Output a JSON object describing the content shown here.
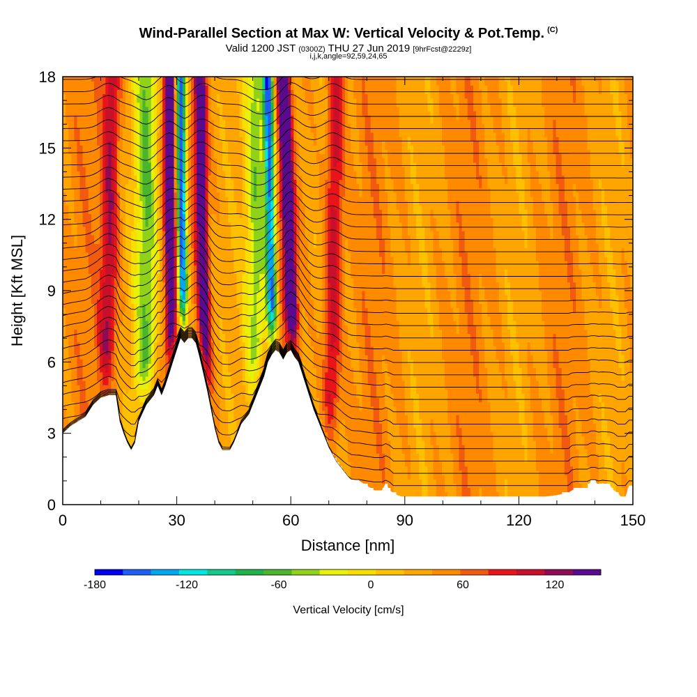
{
  "header": {
    "title": "Wind-Parallel Section at Max W: Vertical Velocity & Pot.Temp.",
    "copyright": "(C)",
    "valid_prefix": "Valid 1200 JST",
    "valid_utc": "(0300Z)",
    "valid_date": "THU 27 Jun 2019",
    "forecast": "[9hrFcst@2229z]",
    "indices": "i,j,k,angle=92,59,24,65"
  },
  "chart_data": {
    "type": "heatmap",
    "xlabel": "Distance [nm]",
    "ylabel": "Height [Kft MSL]",
    "xlim": [
      0,
      150
    ],
    "ylim": [
      0,
      18
    ],
    "x_ticks": [
      "0",
      "30",
      "60",
      "90",
      "120",
      "150"
    ],
    "y_ticks": [
      "0",
      "3",
      "6",
      "9",
      "12",
      "15",
      "18"
    ],
    "colorbar": {
      "label": "Vertical Velocity [cm/s]",
      "range": [
        -180,
        150
      ],
      "step": 15,
      "tick_labels": [
        "-180",
        "-120",
        "-60",
        "0",
        "60",
        "120"
      ],
      "colors": [
        "#0000ee",
        "#1d5ff5",
        "#00a6f0",
        "#00e6e0",
        "#12c98a",
        "#1fb24a",
        "#4bb52d",
        "#90d21a",
        "#e6f20a",
        "#f7e000",
        "#ffc000",
        "#ffa500",
        "#ff8a00",
        "#f25a10",
        "#e8141a",
        "#c8102a",
        "#900a55",
        "#5a0a8c"
      ]
    },
    "terrain": [
      [
        0,
        3
      ],
      [
        2,
        3.3
      ],
      [
        4,
        3.5
      ],
      [
        6,
        3.7
      ],
      [
        8,
        4.2
      ],
      [
        10,
        4.5
      ],
      [
        12,
        4.6
      ],
      [
        14,
        4.6
      ],
      [
        15,
        3.5
      ],
      [
        16,
        3
      ],
      [
        17,
        2.6
      ],
      [
        18,
        2.3
      ],
      [
        19,
        2.6
      ],
      [
        20,
        3.5
      ],
      [
        22,
        4.2
      ],
      [
        24,
        4.6
      ],
      [
        25,
        5
      ],
      [
        26,
        4.6
      ],
      [
        27,
        5
      ],
      [
        28,
        5.5
      ],
      [
        29,
        6
      ],
      [
        30,
        6.5
      ],
      [
        31,
        7
      ],
      [
        32,
        6.8
      ],
      [
        33,
        7
      ],
      [
        34,
        7
      ],
      [
        35,
        6.8
      ],
      [
        36,
        6.2
      ],
      [
        37,
        5.5
      ],
      [
        38,
        4.8
      ],
      [
        39,
        4
      ],
      [
        40,
        3.2
      ],
      [
        41,
        2.6
      ],
      [
        42,
        2.3
      ],
      [
        43,
        2.3
      ],
      [
        44,
        2.3
      ],
      [
        45,
        2.6
      ],
      [
        46,
        3
      ],
      [
        47,
        3.4
      ],
      [
        48,
        3.6
      ],
      [
        49,
        3.8
      ],
      [
        50,
        4.2
      ],
      [
        51,
        4.6
      ],
      [
        52,
        5
      ],
      [
        53,
        5.4
      ],
      [
        54,
        6
      ],
      [
        55,
        6.3
      ],
      [
        56,
        6.5
      ],
      [
        57,
        6.4
      ],
      [
        58,
        6.1
      ],
      [
        59,
        6.4
      ],
      [
        60,
        6.5
      ],
      [
        61,
        6.2
      ],
      [
        62,
        6
      ],
      [
        63,
        5.5
      ],
      [
        64,
        5
      ],
      [
        65,
        4.5
      ],
      [
        66,
        4
      ],
      [
        67,
        3.6
      ],
      [
        68,
        3.2
      ],
      [
        69,
        2.8
      ],
      [
        70,
        2.4
      ],
      [
        71,
        2.1
      ],
      [
        72,
        1.8
      ],
      [
        73,
        1.6
      ],
      [
        74,
        1.4
      ],
      [
        75,
        1.2
      ],
      [
        76,
        1
      ],
      [
        78,
        1
      ],
      [
        80,
        0.8
      ],
      [
        82,
        0.6
      ],
      [
        84,
        0.6
      ],
      [
        85,
        0.9
      ],
      [
        86,
        0.6
      ],
      [
        88,
        0.4
      ],
      [
        90,
        0.3
      ],
      [
        95,
        0.3
      ],
      [
        100,
        0.3
      ],
      [
        105,
        0.3
      ],
      [
        110,
        0.3
      ],
      [
        115,
        0.3
      ],
      [
        120,
        0.3
      ],
      [
        125,
        0.3
      ],
      [
        130,
        0.4
      ],
      [
        133,
        0.5
      ],
      [
        135,
        0.7
      ],
      [
        138,
        0.7
      ],
      [
        139,
        1
      ],
      [
        140,
        1
      ],
      [
        141,
        0.8
      ],
      [
        142,
        0.9
      ],
      [
        144,
        0.8
      ],
      [
        145,
        0.6
      ],
      [
        146,
        0.5
      ],
      [
        147,
        0.3
      ],
      [
        148,
        0.3
      ],
      [
        149,
        0.8
      ],
      [
        150,
        0.8
      ]
    ],
    "updrafts": [
      {
        "x_base": 29,
        "x_top": 28,
        "w_max": 110
      },
      {
        "x_base": 38,
        "x_top": 36,
        "w_max": 110
      },
      {
        "x_base": 62,
        "x_top": 58,
        "w_max": 140
      },
      {
        "x_base": 11,
        "x_top": 13,
        "w_max": 60
      },
      {
        "x_base": 70,
        "x_top": 72,
        "w_max": 60
      }
    ],
    "downdrafts": [
      {
        "x_base": 32,
        "x_top": 31,
        "w_min": -170
      },
      {
        "x_base": 56,
        "x_top": 54,
        "w_min": -150
      },
      {
        "x_base": 22,
        "x_top": 22,
        "w_min": -70
      },
      {
        "x_base": 51,
        "x_top": 51,
        "w_min": -70
      }
    ],
    "isentrope_levels": 34
  }
}
